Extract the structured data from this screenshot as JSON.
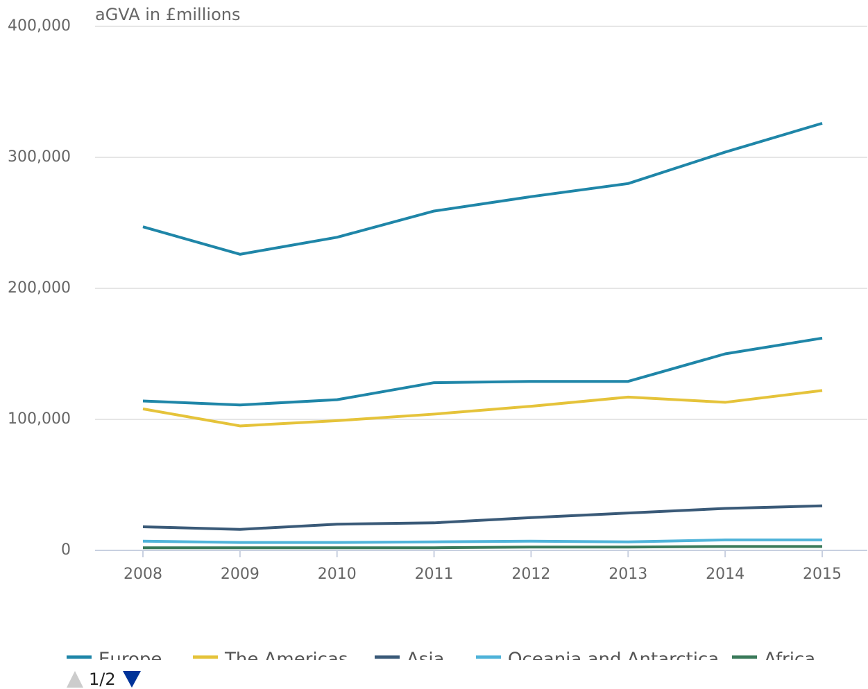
{
  "chart_data": {
    "type": "line",
    "y_axis_label": "aGVA in £millions",
    "x": [
      "2008",
      "2009",
      "2010",
      "2011",
      "2012",
      "2013",
      "2014",
      "2015"
    ],
    "series": [
      {
        "color": "#1f86a8",
        "values": [
          247000,
          226000,
          239000,
          259000,
          270000,
          280000,
          304000,
          326000
        ]
      },
      {
        "name": "Europe",
        "color": "#1f86a8",
        "values": [
          114000,
          111000,
          115000,
          128000,
          129000,
          129000,
          150000,
          162000
        ]
      },
      {
        "name": "The Americas",
        "color": "#e5c33a",
        "values": [
          108000,
          95000,
          99000,
          104000,
          110000,
          117000,
          113000,
          122000
        ]
      },
      {
        "name": "Asia",
        "color": "#3a5a78",
        "values": [
          18000,
          16000,
          20000,
          21000,
          25000,
          28500,
          32000,
          34000
        ]
      },
      {
        "name": "Oceania and Antarctica",
        "color": "#4fb3d9",
        "values": [
          7000,
          6000,
          6000,
          6500,
          7000,
          6500,
          8000,
          8000
        ]
      },
      {
        "name": "Africa",
        "color": "#3a7a5a",
        "values": [
          2000,
          2000,
          2000,
          2000,
          2500,
          2500,
          3000,
          3000
        ]
      }
    ],
    "ylim": [
      0,
      400000
    ],
    "yticks": [
      0,
      {
        "value": 100000,
        "label": "100,000"
      },
      {
        "value": 200000,
        "label": "200,000"
      },
      {
        "value": 300000,
        "label": "300,000"
      },
      {
        "value": 400000,
        "label": "400,000"
      }
    ],
    "grid": true,
    "legend_page": "1/2"
  }
}
